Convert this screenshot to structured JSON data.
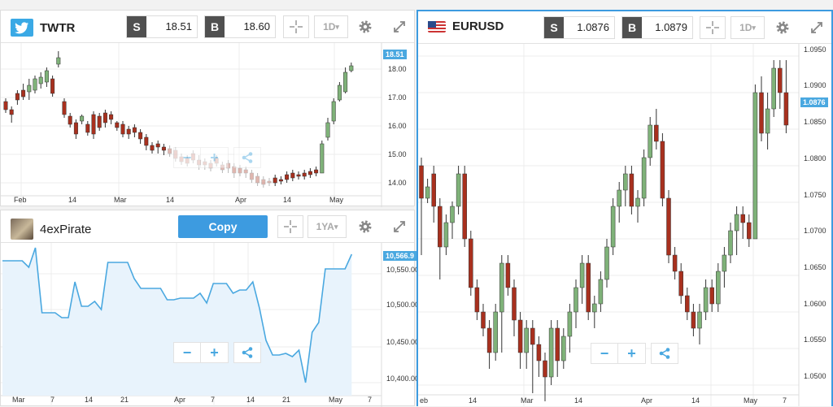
{
  "twtr": {
    "symbol": "TWTR",
    "icon": "twitter-bird-icon",
    "sell_label": "S",
    "sell_value": "18.51",
    "buy_label": "B",
    "buy_value": "18.60",
    "timeframe": "1D",
    "current_price": "18.51",
    "y_ticks": [
      "18.00",
      "17.00",
      "16.00",
      "15.00",
      "14.00"
    ],
    "x_ticks": [
      "Feb",
      "14",
      "Mar",
      "14",
      "Apr",
      "14",
      "May"
    ]
  },
  "pirate": {
    "name": "4exPirate",
    "copy_label": "Copy",
    "timeframe": "1YA",
    "current_value": "10,566.9",
    "y_ticks": [
      "10,550.00",
      "10,500.00",
      "10,450.00",
      "10,400.00"
    ],
    "x_ticks": [
      "Mar",
      "7",
      "14",
      "21",
      "Apr",
      "7",
      "14",
      "21",
      "May",
      "7"
    ]
  },
  "eurusd": {
    "symbol": "EURUSD",
    "icon": "us-flag-icon",
    "sell_label": "S",
    "sell_value": "1.0876",
    "buy_label": "B",
    "buy_value": "1.0879",
    "timeframe": "1D",
    "current_price": "1.0876",
    "y_ticks": [
      "1.0950",
      "1.0900",
      "1.0850",
      "1.0800",
      "1.0750",
      "1.0700",
      "1.0650",
      "1.0600",
      "1.0550",
      "1.0500"
    ],
    "x_ticks": [
      "eb",
      "14",
      "Mar",
      "14",
      "Apr",
      "14",
      "May",
      "7"
    ]
  },
  "colors": {
    "up": "#7fb279",
    "down": "#a8301e",
    "accent": "#4aa8e0",
    "panel_border": "#3d9be0"
  },
  "controls": {
    "zoom_out": "−",
    "zoom_in": "+"
  }
}
